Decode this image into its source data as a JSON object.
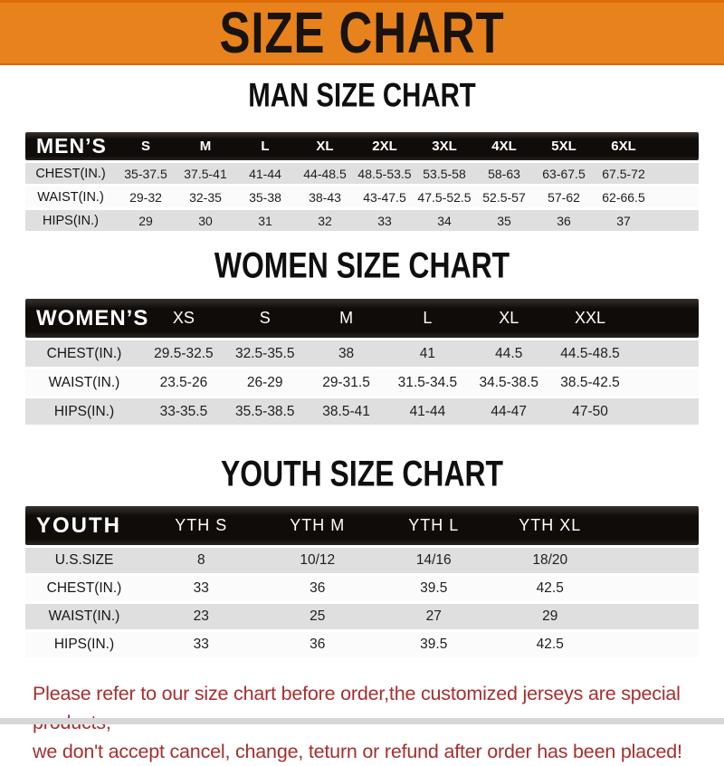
{
  "banner": {
    "title": "SIZE CHART"
  },
  "chart_data": [
    {
      "type": "table",
      "id": "men",
      "title": "MAN SIZE CHART",
      "corner": "MEN’S",
      "columns": [
        "S",
        "M",
        "L",
        "XL",
        "2XL",
        "3XL",
        "4XL",
        "5XL",
        "6XL"
      ],
      "rows": [
        {
          "label": "CHEST(IN.)",
          "values": [
            "35-37.5",
            "37.5-41",
            "41-44",
            "44-48.5",
            "48.5-53.5",
            "53.5-58",
            "58-63",
            "63-67.5",
            "67.5-72"
          ]
        },
        {
          "label": "WAIST(IN.)",
          "values": [
            "29-32",
            "32-35",
            "35-38",
            "38-43",
            "43-47.5",
            "47.5-52.5",
            "52.5-57",
            "57-62",
            "62-66.5"
          ]
        },
        {
          "label": "HIPS(IN.)",
          "values": [
            "29",
            "30",
            "31",
            "32",
            "33",
            "34",
            "35",
            "36",
            "37"
          ]
        }
      ]
    },
    {
      "type": "table",
      "id": "women",
      "title": "WOMEN SIZE CHART",
      "corner": "WOMEN’S",
      "columns": [
        "XS",
        "S",
        "M",
        "L",
        "XL",
        "XXL"
      ],
      "rows": [
        {
          "label": "CHEST(IN.)",
          "values": [
            "29.5-32.5",
            "32.5-35.5",
            "38",
            "41",
            "44.5",
            "44.5-48.5"
          ]
        },
        {
          "label": "WAIST(IN.)",
          "values": [
            "23.5-26",
            "26-29",
            "29-31.5",
            "31.5-34.5",
            "34.5-38.5",
            "38.5-42.5"
          ]
        },
        {
          "label": "HIPS(IN.)",
          "values": [
            "33-35.5",
            "35.5-38.5",
            "38.5-41",
            "41-44",
            "44-47",
            "47-50"
          ]
        }
      ]
    },
    {
      "type": "table",
      "id": "youth",
      "title": "YOUTH SIZE CHART",
      "corner": "YOUTH",
      "columns": [
        "YTH S",
        "YTH M",
        "YTH L",
        "YTH XL"
      ],
      "rows": [
        {
          "label": "U.S.SIZE",
          "values": [
            "8",
            "10/12",
            "14/16",
            "18/20"
          ]
        },
        {
          "label": "CHEST(IN.)",
          "values": [
            "33",
            "36",
            "39.5",
            "42.5"
          ]
        },
        {
          "label": "WAIST(IN.)",
          "values": [
            "23",
            "25",
            "27",
            "29"
          ]
        },
        {
          "label": "HIPS(IN.)",
          "values": [
            "33",
            "36",
            "39.5",
            "42.5"
          ]
        }
      ]
    }
  ],
  "note": {
    "lines": [
      "Please refer to our size chart before order,the customized jerseys are special products,",
      "we don't accept cancel, change, teturn or refund after order has been placed!"
    ]
  },
  "colors": {
    "banner_orange": "#e8821c",
    "bar_black": "#100c09",
    "row_gray": "#dfdfdf",
    "row_white": "#fbfbfb",
    "note_red": "#a62f2e"
  }
}
